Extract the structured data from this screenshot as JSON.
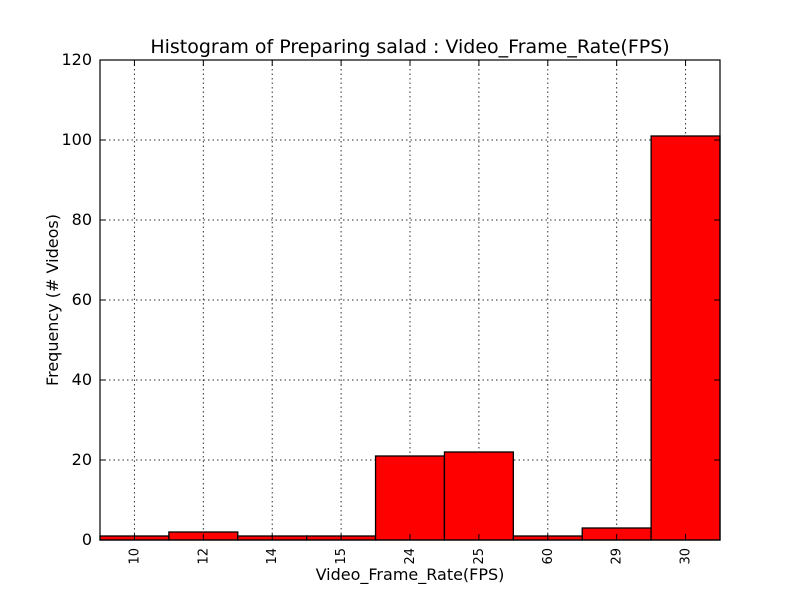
{
  "chart_data": {
    "type": "bar",
    "title": "Histogram of Preparing salad : Video_Frame_Rate(FPS)",
    "xlabel": "Video_Frame_Rate(FPS)",
    "ylabel": "Frequency (# Videos)",
    "categories": [
      "10",
      "12",
      "14",
      "15",
      "24",
      "25",
      "60",
      "29",
      "30"
    ],
    "values": [
      1,
      2,
      1,
      1,
      21,
      22,
      1,
      3,
      101
    ],
    "yticks": [
      "0",
      "20",
      "40",
      "60",
      "80",
      "100",
      "120"
    ],
    "ylim": [
      0,
      120
    ],
    "grid": true,
    "bar_color": "#ff0000",
    "edge_color": "#000000"
  }
}
